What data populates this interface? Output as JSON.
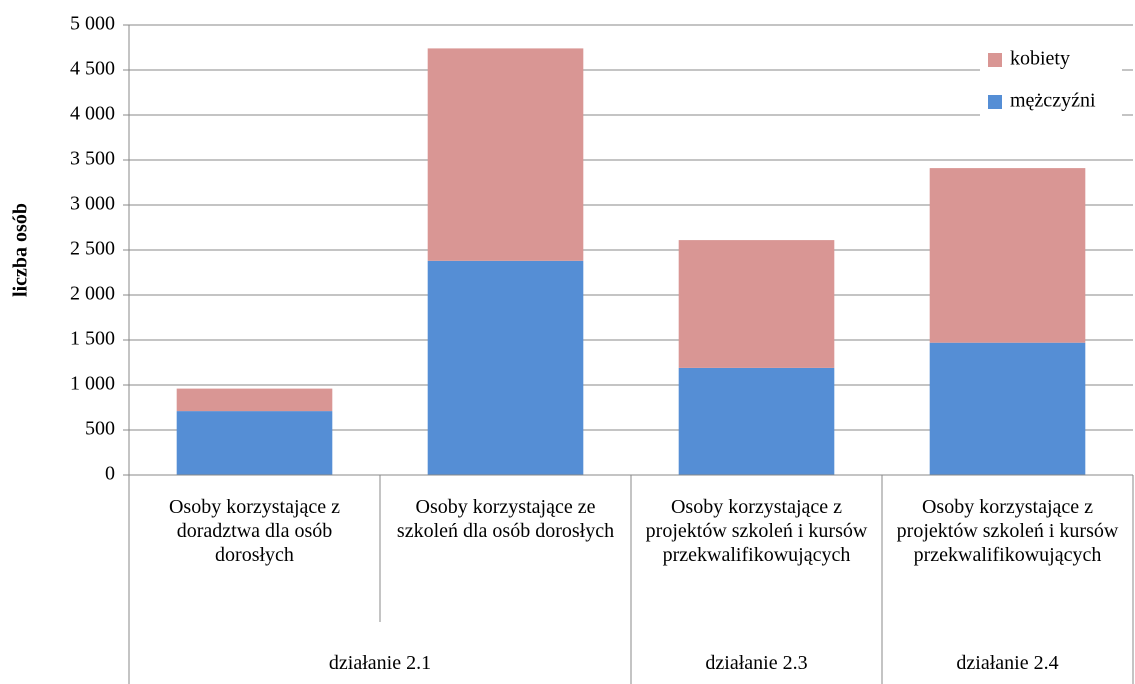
{
  "chart_data": {
    "type": "bar",
    "stacked": true,
    "y_label": "liczba osób",
    "groups": [
      {
        "label": "działanie 2.1",
        "categories": [
          "Osoby korzystające z doradztwa dla osób dorosłych",
          "Osoby korzystające ze szkoleń dla osób dorosłych"
        ]
      },
      {
        "label": "działanie 2.3",
        "categories": [
          "Osoby korzystające z projektów szkoleń i kursów przekwalifikowujących"
        ]
      },
      {
        "label": "działanie 2.4",
        "categories": [
          "Osoby korzystające z projektów szkoleń i kursów przekwalifikowujących"
        ]
      }
    ],
    "series": [
      {
        "name": "mężczyźni",
        "color": "#558ed5",
        "values": [
          710,
          2380,
          1190,
          1470
        ]
      },
      {
        "name": "kobiety",
        "color": "#d99694",
        "values": [
          250,
          2360,
          1420,
          1940
        ]
      }
    ],
    "ylim": [
      0,
      5000
    ],
    "yticks": [
      0,
      500,
      {
        "value": 1000,
        "label": "1 000"
      },
      {
        "value": 1500,
        "label": "1 500"
      },
      {
        "value": 2000,
        "label": "2 000"
      },
      {
        "value": 2500,
        "label": "2 500"
      },
      {
        "value": 3000,
        "label": "3 000"
      },
      {
        "value": 3500,
        "label": "3 500"
      },
      {
        "value": 4000,
        "label": "4 000"
      },
      {
        "value": 4500,
        "label": "4 500"
      },
      {
        "value": 5000,
        "label": "5 000"
      }
    ],
    "grid": true,
    "legend": "top-right"
  }
}
